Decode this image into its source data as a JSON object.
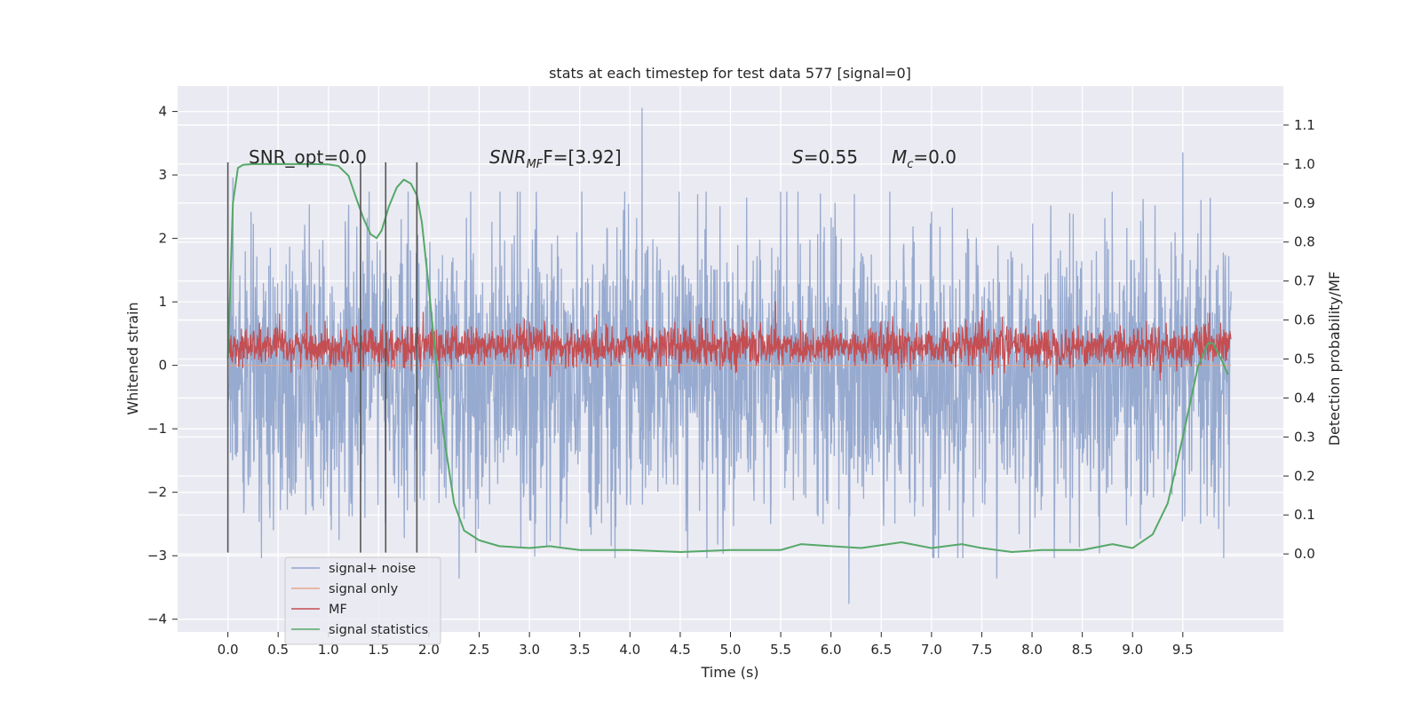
{
  "chart_data": {
    "type": "line",
    "title": "stats at each timestep for test data 577 [signal=0]",
    "xlabel": "Time (s)",
    "ylabel": "Whitened strain",
    "ylabel_right": "Detection probability/MF",
    "xlim": [
      -0.5,
      10.5
    ],
    "ylim": [
      -4.2,
      4.4
    ],
    "ylim_right": [
      -0.2,
      1.2
    ],
    "x_ticks": [
      "0.0",
      "0.5",
      "1.0",
      "1.5",
      "2.0",
      "2.5",
      "3.0",
      "3.5",
      "4.0",
      "4.5",
      "5.0",
      "5.5",
      "6.0",
      "6.5",
      "7.0",
      "7.5",
      "8.0",
      "8.5",
      "9.0",
      "9.5"
    ],
    "y_ticks": [
      "−4",
      "−3",
      "−2",
      "−1",
      "0",
      "1",
      "2",
      "3",
      "4"
    ],
    "y_ticks_right": [
      "0.0",
      "0.1",
      "0.2",
      "0.3",
      "0.4",
      "0.5",
      "0.6",
      "0.7",
      "0.8",
      "0.9",
      "1.0",
      "1.1"
    ],
    "grid": true,
    "legend_position": "lower-left",
    "annotations": {
      "snr_opt": "SNR_opt=0.0",
      "snr_mf_base": "SNR",
      "snr_mf_sub": "MF",
      "snr_mf_tail": "F=[3.92]",
      "s_label": "S",
      "s_value": "=0.55",
      "mc_base": "M",
      "mc_sub": "c",
      "mc_value": "=0.0"
    },
    "vertical_markers_x": [
      0.0,
      1.32,
      1.57,
      1.88
    ],
    "series": [
      {
        "name": "signal+ noise",
        "color": "#92a6cc",
        "axis": "left",
        "kind": "noise",
        "x_range": [
          0.0,
          9.98
        ],
        "center": -0.15,
        "typical_abs_max": 1.8,
        "peak_values": [
          {
            "x": 4.12,
            "y": 4.05
          },
          {
            "x": 9.5,
            "y": 3.35
          },
          {
            "x": 6.18,
            "y": -3.75
          },
          {
            "x": 7.65,
            "y": -3.35
          },
          {
            "x": 2.3,
            "y": -3.35
          },
          {
            "x": 0.05,
            "y": 2.95
          }
        ]
      },
      {
        "name": "signal only",
        "color": "#e8a68c",
        "axis": "left",
        "kind": "flat",
        "value": 0.0
      },
      {
        "name": "MF",
        "color": "#c44e52",
        "axis": "left",
        "kind": "noise",
        "x_range": [
          0.0,
          9.98
        ],
        "center": 0.3,
        "typical_abs_max": 0.35,
        "peak_values": [
          {
            "x": 5.45,
            "y": 1.0
          }
        ]
      },
      {
        "name": "signal statistics",
        "color": "#55a868",
        "axis": "right",
        "kind": "line",
        "x": [
          0.0,
          0.05,
          0.1,
          0.15,
          0.25,
          0.4,
          0.6,
          0.8,
          1.0,
          1.1,
          1.2,
          1.28,
          1.35,
          1.42,
          1.48,
          1.53,
          1.6,
          1.68,
          1.75,
          1.82,
          1.88,
          1.93,
          2.0,
          2.08,
          2.15,
          2.25,
          2.35,
          2.5,
          2.7,
          3.0,
          3.2,
          3.5,
          4.0,
          4.5,
          5.0,
          5.5,
          5.7,
          6.0,
          6.3,
          6.7,
          7.0,
          7.3,
          7.5,
          7.8,
          8.1,
          8.5,
          8.8,
          9.0,
          9.2,
          9.35,
          9.5,
          9.65,
          9.75,
          9.8,
          9.88,
          9.95
        ],
        "y": [
          0.5,
          0.9,
          0.99,
          0.998,
          1.0,
          1.0,
          1.0,
          1.0,
          0.999,
          0.995,
          0.97,
          0.91,
          0.86,
          0.82,
          0.81,
          0.83,
          0.89,
          0.94,
          0.96,
          0.95,
          0.92,
          0.85,
          0.68,
          0.47,
          0.3,
          0.13,
          0.06,
          0.035,
          0.02,
          0.015,
          0.02,
          0.01,
          0.01,
          0.005,
          0.01,
          0.01,
          0.025,
          0.02,
          0.015,
          0.03,
          0.015,
          0.025,
          0.015,
          0.005,
          0.01,
          0.01,
          0.025,
          0.015,
          0.05,
          0.13,
          0.3,
          0.48,
          0.54,
          0.54,
          0.5,
          0.46
        ]
      }
    ]
  }
}
